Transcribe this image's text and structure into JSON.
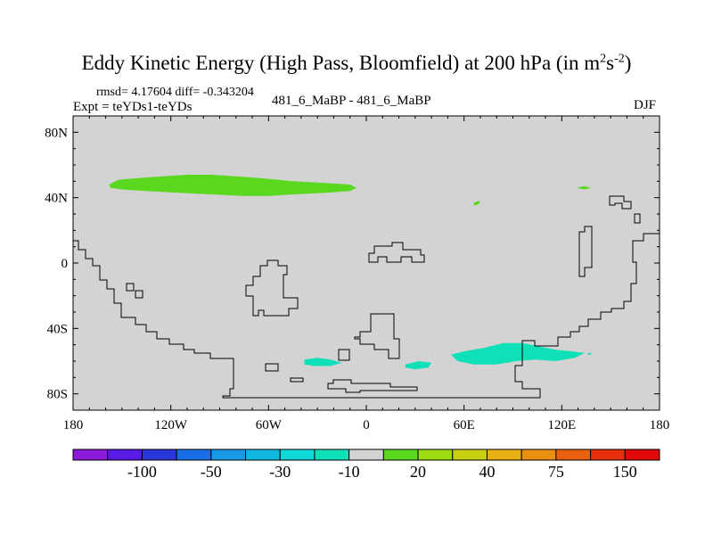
{
  "chart_data": {
    "type": "heatmap",
    "title": "Eddy Kinetic Energy (High Pass, Bloomfield) at 200 hPa (in m",
    "title_unit_sup1": "2",
    "title_unit_s": "s",
    "title_unit_sup2": "-2",
    "title_close": ")",
    "stats_text": "rmsd= 4.17604 diff= -0.343204",
    "expt_text": "Expt = teYDs1-teYDs",
    "case_text": "481_6_MaBP - 481_6_MaBP",
    "season": "DJF",
    "x_range": [
      -180,
      180
    ],
    "y_range": [
      -90,
      90
    ],
    "x_ticks": [
      {
        "value": -180,
        "label": "180"
      },
      {
        "value": -120,
        "label": "120W"
      },
      {
        "value": -60,
        "label": "60W"
      },
      {
        "value": 0,
        "label": "0"
      },
      {
        "value": 60,
        "label": "60E"
      },
      {
        "value": 120,
        "label": "120E"
      },
      {
        "value": 180,
        "label": "180"
      }
    ],
    "y_ticks": [
      {
        "value": 80,
        "label": "80N"
      },
      {
        "value": 40,
        "label": "40N"
      },
      {
        "value": 0,
        "label": "0"
      },
      {
        "value": -40,
        "label": "40S"
      },
      {
        "value": -80,
        "label": "80S"
      }
    ],
    "background_color": "#d3d3d3",
    "colorbar": {
      "boundaries": [
        -150,
        -100,
        -75,
        -50,
        -40,
        -30,
        -20,
        -10,
        10,
        20,
        30,
        40,
        50,
        75,
        100,
        150
      ],
      "colors": [
        "#8c1adb",
        "#5a1ae6",
        "#2a37d8",
        "#1a6ee6",
        "#1a9ae6",
        "#10b8e0",
        "#10d8d8",
        "#10e0b8",
        "#d3d3d3",
        "#5ad820",
        "#9cdc10",
        "#c8d010",
        "#e8b010",
        "#e89010",
        "#e86010",
        "#e83010",
        "#e00a0a"
      ],
      "labels": [
        {
          "after_box": 1,
          "text": "-100"
        },
        {
          "after_box": 3,
          "text": "-50"
        },
        {
          "after_box": 5,
          "text": "-30"
        },
        {
          "after_box": 7,
          "text": "-10"
        },
        {
          "after_box": 9,
          "text": "20"
        },
        {
          "after_box": 11,
          "text": "40"
        },
        {
          "after_box": 13,
          "text": "75"
        },
        {
          "after_box": 15,
          "text": "150"
        }
      ]
    },
    "anomaly_regions": [
      {
        "name": "north-pacific-green",
        "color": "#5ad820",
        "points": [
          [
            -158,
            48
          ],
          [
            -152,
            51
          ],
          [
            -140,
            52
          ],
          [
            -125,
            53
          ],
          [
            -110,
            54
          ],
          [
            -95,
            54
          ],
          [
            -80,
            53
          ],
          [
            -65,
            52
          ],
          [
            -45,
            50
          ],
          [
            -25,
            49
          ],
          [
            -10,
            48
          ],
          [
            -6,
            46
          ],
          [
            -10,
            44
          ],
          [
            -25,
            43
          ],
          [
            -45,
            42
          ],
          [
            -60,
            41
          ],
          [
            -75,
            41
          ],
          [
            -95,
            42
          ],
          [
            -115,
            43
          ],
          [
            -135,
            44
          ],
          [
            -150,
            45
          ],
          [
            -157,
            46
          ]
        ]
      },
      {
        "name": "north-atlantic-green",
        "color": "#5ad820",
        "points": [
          [
            66,
            37
          ],
          [
            70,
            38
          ],
          [
            69,
            36
          ],
          [
            66,
            35
          ]
        ]
      },
      {
        "name": "north-pacific-east-green",
        "color": "#5ad820",
        "points": [
          [
            129,
            46
          ],
          [
            134,
            47
          ],
          [
            138,
            46
          ],
          [
            134,
            45
          ]
        ]
      },
      {
        "name": "south-atlantic-cyan",
        "color": "#10e0b8",
        "points": [
          [
            -38,
            -59
          ],
          [
            -30,
            -58
          ],
          [
            -22,
            -59
          ],
          [
            -15,
            -61
          ],
          [
            -22,
            -63
          ],
          [
            -32,
            -63
          ],
          [
            -38,
            -62
          ]
        ]
      },
      {
        "name": "south-indian-cyan",
        "color": "#10e0b8",
        "points": [
          [
            24,
            -62
          ],
          [
            32,
            -60
          ],
          [
            40,
            -61
          ],
          [
            38,
            -64
          ],
          [
            30,
            -65
          ],
          [
            24,
            -64
          ]
        ]
      },
      {
        "name": "south-indian-east-cyan",
        "color": "#10e0b8",
        "points": [
          [
            52,
            -56
          ],
          [
            60,
            -54
          ],
          [
            72,
            -52
          ],
          [
            84,
            -49
          ],
          [
            96,
            -49
          ],
          [
            106,
            -51
          ],
          [
            116,
            -53
          ],
          [
            126,
            -54
          ],
          [
            134,
            -55
          ],
          [
            128,
            -58
          ],
          [
            116,
            -60
          ],
          [
            104,
            -59
          ],
          [
            92,
            -60
          ],
          [
            80,
            -62
          ],
          [
            66,
            -62
          ],
          [
            56,
            -60
          ]
        ]
      },
      {
        "name": "cyan-dot",
        "color": "#10e0b8",
        "points": [
          [
            136,
            -55
          ],
          [
            138,
            -55
          ],
          [
            138,
            -56
          ],
          [
            136,
            -56
          ]
        ]
      }
    ]
  }
}
